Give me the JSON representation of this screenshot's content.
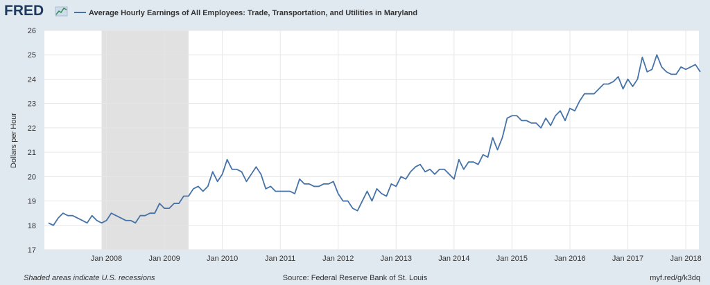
{
  "header": {
    "logo_text": "FRED",
    "series_title": "Average Hourly Earnings of All Employees: Trade, Transportation, and Utilities in Maryland"
  },
  "footer": {
    "note": "Shaded areas indicate U.S. recessions",
    "source": "Source: Federal Reserve Bank of St. Louis",
    "link": "myf.red/g/k3dq"
  },
  "colors": {
    "background": "#e1e9f0",
    "plot_background": "#ffffff",
    "line": "#4572a7",
    "recession": "#e1e1e1",
    "grid": "#e6e6e6"
  },
  "chart_data": {
    "type": "line",
    "title": "Average Hourly Earnings of All Employees: Trade, Transportation, and Utilities in Maryland",
    "xlabel": "",
    "ylabel": "Dollars per Hour",
    "x_tick_labels": [
      "Jan 2008",
      "Jan 2009",
      "Jan 2010",
      "Jan 2011",
      "Jan 2012",
      "Jan 2013",
      "Jan 2014",
      "Jan 2015",
      "Jan 2016",
      "Jan 2017",
      "Jan 2018"
    ],
    "y_ticks": [
      17,
      18,
      19,
      20,
      21,
      22,
      23,
      24,
      25,
      26
    ],
    "ylim": [
      17,
      26
    ],
    "xlim": [
      "2007-01",
      "2018-04"
    ],
    "grid": true,
    "recessions": [
      {
        "start": "2007-12",
        "end": "2009-06"
      }
    ],
    "series": [
      {
        "start": "2007-01",
        "frequency": "monthly",
        "values": [
          18.1,
          18.0,
          18.3,
          18.5,
          18.4,
          18.4,
          18.3,
          18.2,
          18.1,
          18.4,
          18.2,
          18.1,
          18.2,
          18.5,
          18.4,
          18.3,
          18.2,
          18.2,
          18.1,
          18.4,
          18.4,
          18.5,
          18.5,
          18.9,
          18.7,
          18.7,
          18.9,
          18.9,
          19.2,
          19.2,
          19.5,
          19.6,
          19.4,
          19.6,
          20.2,
          19.8,
          20.1,
          20.7,
          20.3,
          20.3,
          20.2,
          19.8,
          20.1,
          20.4,
          20.1,
          19.5,
          19.6,
          19.4,
          19.4,
          19.4,
          19.4,
          19.3,
          19.9,
          19.7,
          19.7,
          19.6,
          19.6,
          19.7,
          19.7,
          19.8,
          19.3,
          19.0,
          19.0,
          18.7,
          18.6,
          19.0,
          19.4,
          19.0,
          19.5,
          19.3,
          19.2,
          19.7,
          19.6,
          20.0,
          19.9,
          20.2,
          20.4,
          20.5,
          20.2,
          20.3,
          20.1,
          20.3,
          20.3,
          20.1,
          19.9,
          20.7,
          20.3,
          20.6,
          20.6,
          20.5,
          20.9,
          20.8,
          21.6,
          21.1,
          21.6,
          22.4,
          22.5,
          22.5,
          22.3,
          22.3,
          22.2,
          22.2,
          22.0,
          22.4,
          22.1,
          22.5,
          22.7,
          22.3,
          22.8,
          22.7,
          23.1,
          23.4,
          23.4,
          23.4,
          23.6,
          23.8,
          23.8,
          23.9,
          24.1,
          23.6,
          24.0,
          23.7,
          24.0,
          24.9,
          24.3,
          24.4,
          25.0,
          24.5,
          24.3,
          24.2,
          24.2,
          24.5,
          24.4,
          24.5,
          24.6,
          24.3
        ]
      }
    ]
  }
}
